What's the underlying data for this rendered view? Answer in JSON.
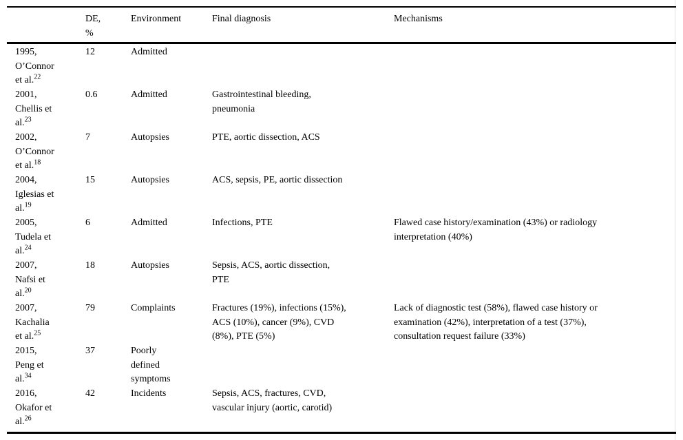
{
  "page": {
    "background_color": "#ffffff",
    "text_color": "#000000",
    "rule_color": "#000000"
  },
  "table": {
    "columns": [
      {
        "id": "study",
        "label": ""
      },
      {
        "id": "de",
        "label": "DE,\n%"
      },
      {
        "id": "environment",
        "label": "Environment"
      },
      {
        "id": "final_diagnosis",
        "label": "Final diagnosis"
      },
      {
        "id": "mechanisms",
        "label": "Mechanisms"
      }
    ],
    "rows": [
      {
        "study": "1995,\nO’Connor\net al.",
        "ref": "22",
        "de": "12",
        "environment": "Admitted",
        "final_diagnosis": "",
        "mechanisms": ""
      },
      {
        "study": "2001,\nChellis et\nal.",
        "ref": "23",
        "de": "0.6",
        "environment": "Admitted",
        "final_diagnosis": "Gastrointestinal bleeding,\npneumonia",
        "mechanisms": ""
      },
      {
        "study": "2002,\nO’Connor\net al.",
        "ref": "18",
        "de": "7",
        "environment": "Autopsies",
        "final_diagnosis": "PTE, aortic dissection, ACS",
        "mechanisms": ""
      },
      {
        "study": "2004,\nIglesias et\nal.",
        "ref": "19",
        "de": "15",
        "environment": "Autopsies",
        "final_diagnosis": "ACS, sepsis, PE, aortic dissection",
        "mechanisms": ""
      },
      {
        "study": "2005,\nTudela et\nal.",
        "ref": "24",
        "de": "6",
        "environment": "Admitted",
        "final_diagnosis": "Infections, PTE",
        "mechanisms": "Flawed case history/examination (43%) or radiology\ninterpretation (40%)"
      },
      {
        "study": "2007,\nNafsi et\nal.",
        "ref": "20",
        "de": "18",
        "environment": "Autopsies",
        "final_diagnosis": "Sepsis, ACS, aortic dissection,\nPTE",
        "mechanisms": ""
      },
      {
        "study": "2007,\nKachalia\net al.",
        "ref": "25",
        "de": "79",
        "environment": "Complaints",
        "final_diagnosis": "Fractures (19%), infections (15%),\nACS (10%), cancer (9%), CVD\n(8%), PTE (5%)",
        "mechanisms": "Lack of diagnostic test (58%), flawed case history or\nexamination (42%), interpretation of a test (37%),\nconsultation request failure (33%)"
      },
      {
        "study": "2015,\nPeng et\nal.",
        "ref": "34",
        "de": "37",
        "environment": "Poorly\ndefined\nsymptoms",
        "final_diagnosis": "",
        "mechanisms": ""
      },
      {
        "study": "2016,\nOkafor et\nal.",
        "ref": "26",
        "de": "42",
        "environment": "Incidents",
        "final_diagnosis": "Sepsis, ACS, fractures, CVD,\nvascular injury (aortic, carotid)",
        "mechanisms": ""
      }
    ]
  }
}
